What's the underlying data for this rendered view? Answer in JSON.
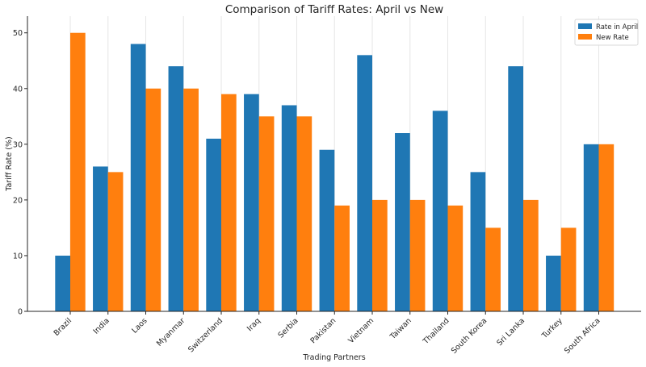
{
  "chart_data": {
    "type": "bar",
    "title": "Comparison of Tariff Rates: April vs New",
    "xlabel": "Trading Partners",
    "ylabel": "Tariff Rate (%)",
    "ylim": [
      0,
      53
    ],
    "yticks": [
      0,
      10,
      20,
      30,
      40,
      50
    ],
    "grid": "vertical",
    "legend_position": "top-right",
    "categories": [
      "Brazil",
      "India",
      "Laos",
      "Myanmar",
      "Switzerland",
      "Iraq",
      "Serbia",
      "Pakistan",
      "Vietnam",
      "Taiwan",
      "Thailand",
      "South Korea",
      "Sri Lanka",
      "Turkey",
      "South Africa"
    ],
    "series": [
      {
        "name": "Rate in April",
        "color": "#1f77b4",
        "values": [
          10,
          26,
          48,
          44,
          31,
          39,
          37,
          29,
          46,
          32,
          36,
          25,
          44,
          10,
          30
        ]
      },
      {
        "name": "New Rate",
        "color": "#ff7f0e",
        "values": [
          50,
          25,
          40,
          40,
          39,
          35,
          35,
          19,
          20,
          20,
          19,
          15,
          20,
          15,
          30
        ]
      }
    ]
  }
}
